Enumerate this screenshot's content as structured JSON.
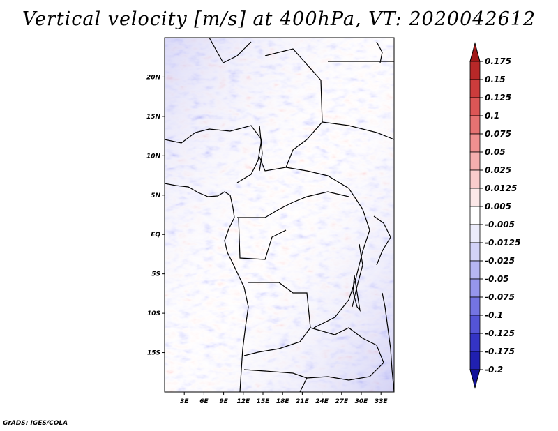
{
  "chart_data": {
    "type": "heatmap",
    "title": "Vertical velocity [m/s] at 400hPa, VT: 2020042612",
    "variable": "Vertical velocity",
    "units": "m/s",
    "level": "400hPa",
    "valid_time": "2020042612",
    "x_axis": {
      "unit": "degrees longitude",
      "range": [
        0,
        35
      ],
      "ticks": [
        3,
        6,
        9,
        12,
        15,
        18,
        21,
        24,
        27,
        30,
        33
      ],
      "tick_labels": [
        "3E",
        "6E",
        "9E",
        "12E",
        "15E",
        "18E",
        "21E",
        "24E",
        "27E",
        "30E",
        "33E"
      ]
    },
    "y_axis": {
      "unit": "degrees latitude",
      "range": [
        -20,
        25
      ],
      "ticks": [
        20,
        15,
        10,
        5,
        0,
        -5,
        -10,
        -15
      ],
      "tick_labels": [
        "20N",
        "15N",
        "10N",
        "5N",
        "EQ",
        "5S",
        "10S",
        "15S"
      ]
    },
    "colorbar": {
      "levels": [
        "0.175",
        "0.15",
        "0.125",
        "0.1",
        "0.075",
        "0.05",
        "0.025",
        "0.0125",
        "0.005",
        "-0.005",
        "-0.0125",
        "-0.025",
        "-0.05",
        "-0.075",
        "-0.1",
        "-0.125",
        "-0.175",
        "-0.2"
      ],
      "colors": [
        "#a01818",
        "#b82828",
        "#cc3c3c",
        "#dc5656",
        "#e67272",
        "#ef9090",
        "#f5aeae",
        "#f9cccc",
        "#fce8e8",
        "#ffffff",
        "#ececfb",
        "#d2d2f7",
        "#b6b6f2",
        "#9696ec",
        "#7474e2",
        "#5454d6",
        "#3434c4",
        "#2020b0",
        "#12129a"
      ]
    }
  },
  "footer": {
    "credit": "GrADS: IGES/COLA"
  }
}
